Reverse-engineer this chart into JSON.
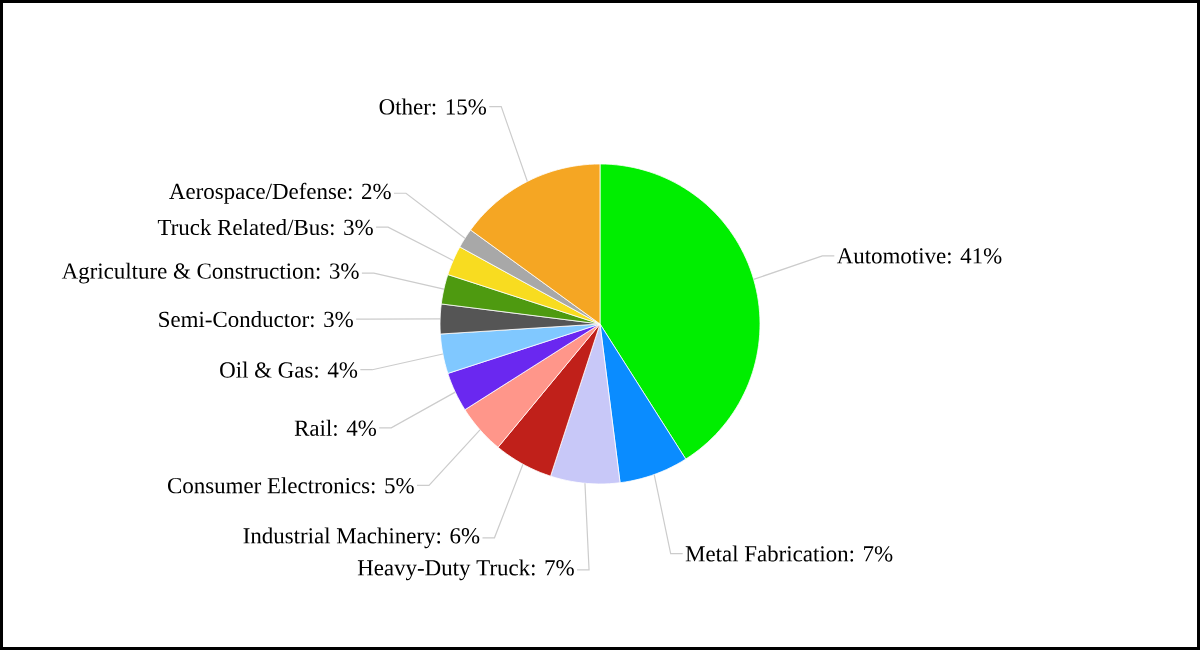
{
  "chart_data": {
    "type": "pie",
    "categories": [
      "Automotive",
      "Metal Fabrication",
      "Heavy-Duty Truck",
      "Industrial Machinery",
      "Consumer Electronics",
      "Rail",
      "Oil & Gas",
      "Semi-Conductor",
      "Agriculture & Construction",
      "Truck Related/Bus",
      "Aerospace/Defense",
      "Other"
    ],
    "values": [
      41,
      7,
      7,
      6,
      5,
      4,
      4,
      3,
      3,
      3,
      2,
      15
    ],
    "value_labels": [
      ": 41%",
      ": 7%",
      ": 7%",
      ": 6%",
      ": 5%",
      ": 4%",
      ": 4%",
      ": 3%",
      ": 3%",
      ": 3%",
      ": 2%",
      ": 15%"
    ],
    "colors": [
      "#00ee00",
      "#0a8cff",
      "#c8c8f8",
      "#c0201a",
      "#ff968a",
      "#6a28f0",
      "#80c8ff",
      "#555555",
      "#4e9a10",
      "#f8dc20",
      "#a8a8a8",
      "#f5a623"
    ]
  }
}
